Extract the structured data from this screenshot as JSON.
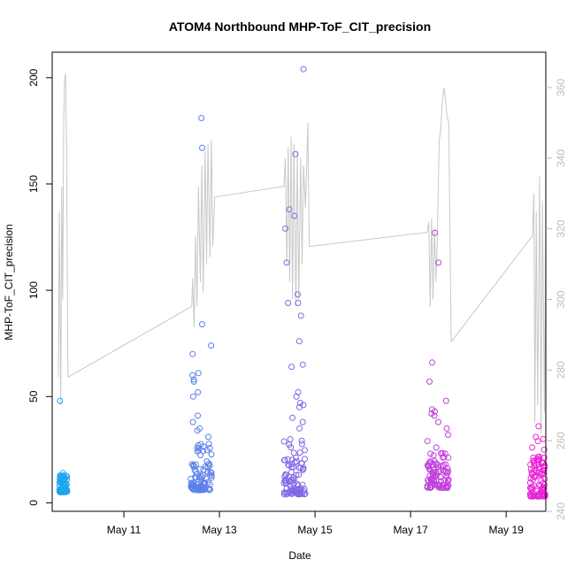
{
  "chart_data": {
    "type": "scatter",
    "title": "ATOM4 Northbound MHP-ToF_CIT_precision",
    "xlabel": "Date",
    "ylabel": "MHP-ToF_CIT_precision",
    "x_ticks": [
      "May 11",
      "May 13",
      "May 15",
      "May 17",
      "May 19"
    ],
    "x_range_days": [
      9.5,
      19.83
    ],
    "ylim": [
      -4,
      212
    ],
    "y_ticks": [
      0,
      50,
      100,
      150,
      200
    ],
    "y2lim": [
      240,
      370
    ],
    "y2_ticks": [
      240,
      260,
      280,
      300,
      320,
      340,
      360
    ],
    "grid": false,
    "colors": {
      "series_start": "#19a9f0",
      "series_end": "#ee22d6",
      "secondary_line": "#c8c8c8",
      "frame": "#000000",
      "right_axis": "#bdbdbd"
    },
    "scatter_clusters": [
      {
        "start_day": 9.65,
        "end_day": 9.82,
        "base_range": [
          5,
          13
        ],
        "highlights": [
          14,
          48
        ]
      },
      {
        "start_day": 12.4,
        "end_day": 12.85,
        "base_range": [
          6,
          28
        ],
        "highlights": [
          181,
          167,
          84,
          74,
          70,
          61,
          60,
          58,
          57,
          52,
          50,
          41,
          38,
          35,
          34,
          31
        ]
      },
      {
        "start_day": 14.35,
        "end_day": 14.8,
        "base_range": [
          4,
          30
        ],
        "highlights": [
          204,
          164,
          138,
          135,
          129,
          113,
          98,
          94,
          94,
          88,
          76,
          65,
          64,
          52,
          50,
          47,
          46,
          45,
          40,
          38,
          35
        ]
      },
      {
        "start_day": 17.35,
        "end_day": 17.8,
        "base_range": [
          7,
          24
        ],
        "highlights": [
          127,
          113,
          66,
          57,
          48,
          44,
          43,
          42,
          41,
          38,
          35,
          32,
          29,
          26
        ]
      },
      {
        "start_day": 19.5,
        "end_day": 19.83,
        "base_range": [
          3,
          22
        ],
        "highlights": [
          36,
          31,
          30,
          29,
          26,
          25
        ]
      }
    ],
    "secondary_line": {
      "label": "",
      "segments": [
        {
          "x": [
            9.63,
            9.65,
            9.68,
            9.7,
            9.72,
            9.74,
            9.76,
            9.78,
            9.8,
            9.83
          ],
          "y": [
            278,
            325,
            270,
            332,
            300,
            350,
            362,
            364,
            345,
            278
          ]
        },
        {
          "x": [
            9.83,
            12.42
          ],
          "y": [
            278,
            298
          ]
        },
        {
          "x": [
            12.42,
            12.44,
            12.47,
            12.5,
            12.53,
            12.56,
            12.6,
            12.63,
            12.66,
            12.7,
            12.73,
            12.76,
            12.8,
            12.83,
            12.86,
            12.9
          ],
          "y": [
            298,
            306,
            292,
            318,
            298,
            332,
            305,
            338,
            302,
            342,
            310,
            344,
            312,
            345,
            315,
            329
          ]
        },
        {
          "x": [
            12.9,
            14.35
          ],
          "y": [
            329,
            332
          ]
        },
        {
          "x": [
            14.35,
            14.38,
            14.41,
            14.44,
            14.47,
            14.5,
            14.53,
            14.56,
            14.6,
            14.63,
            14.66,
            14.7,
            14.73,
            14.76,
            14.8,
            14.85,
            14.88
          ],
          "y": [
            332,
            340,
            310,
            343,
            305,
            346,
            300,
            344,
            298,
            342,
            300,
            340,
            310,
            338,
            326,
            350,
            315
          ]
        },
        {
          "x": [
            14.88,
            17.35
          ],
          "y": [
            315,
            319
          ]
        },
        {
          "x": [
            17.35,
            17.38,
            17.41,
            17.44,
            17.47,
            17.5,
            17.53,
            17.56,
            17.6,
            17.63,
            17.66,
            17.7,
            17.73,
            17.76,
            17.8,
            17.85
          ],
          "y": [
            319,
            322,
            298,
            323,
            300,
            320,
            305,
            318,
            345,
            348,
            355,
            360,
            357,
            352,
            350,
            288
          ]
        },
        {
          "x": [
            17.85,
            19.55
          ],
          "y": [
            288,
            318
          ]
        },
        {
          "x": [
            19.55,
            19.58,
            19.6,
            19.63,
            19.66,
            19.7,
            19.73,
            19.76,
            19.8,
            19.83
          ],
          "y": [
            318,
            330,
            265,
            325,
            270,
            335,
            262,
            328,
            268,
            322
          ]
        }
      ]
    }
  }
}
